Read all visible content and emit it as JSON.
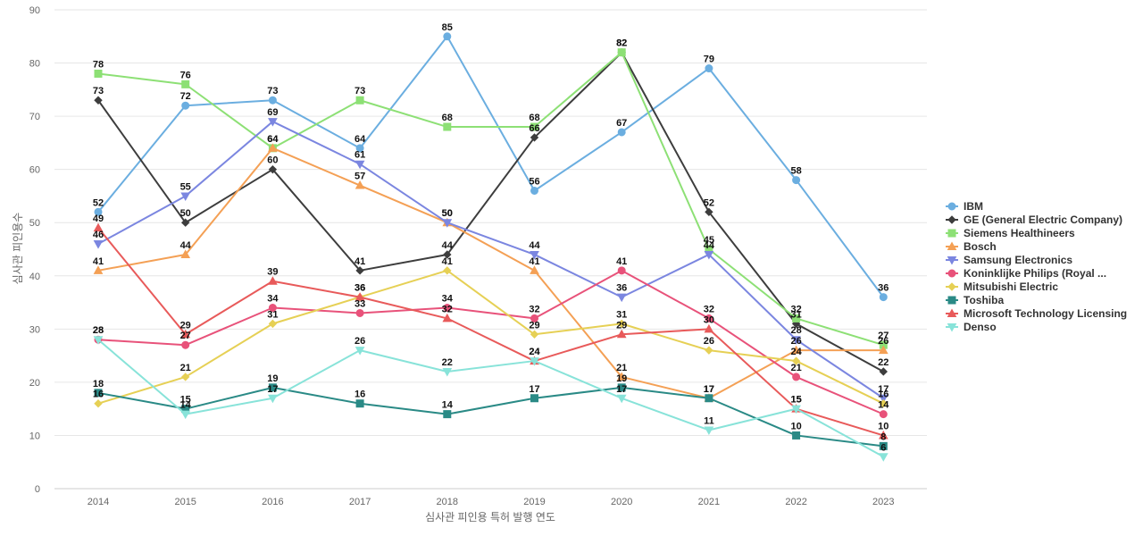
{
  "chart_data": {
    "type": "line",
    "title": "",
    "xlabel": "심사관 피인용 특허 발행 연도",
    "ylabel": "심사관 피인용수",
    "categories": [
      "2014",
      "2015",
      "2016",
      "2017",
      "2018",
      "2019",
      "2020",
      "2021",
      "2022",
      "2023"
    ],
    "ylim": [
      0,
      90
    ],
    "yticks": [
      0,
      10,
      20,
      30,
      40,
      50,
      60,
      70,
      80,
      90
    ],
    "grid": true,
    "legend_position": "right",
    "series": [
      {
        "name": "IBM",
        "color": "#6baee0",
        "marker": "circle",
        "values": [
          52,
          72,
          73,
          64,
          85,
          56,
          67,
          79,
          58,
          36
        ]
      },
      {
        "name": "GE (General Electric Company)",
        "color": "#3d3d3d",
        "marker": "diamond",
        "values": [
          73,
          50,
          60,
          41,
          44,
          66,
          82,
          52,
          31,
          22
        ]
      },
      {
        "name": "Siemens Healthineers",
        "color": "#8de075",
        "marker": "square",
        "values": [
          78,
          76,
          64,
          73,
          68,
          68,
          82,
          45,
          32,
          27
        ]
      },
      {
        "name": "Bosch",
        "color": "#f4a055",
        "marker": "triangle-up",
        "values": [
          41,
          44,
          64,
          57,
          50,
          41,
          21,
          17,
          26,
          26
        ]
      },
      {
        "name": "Samsung Electronics",
        "color": "#7b86e0",
        "marker": "triangle-down",
        "values": [
          46,
          55,
          69,
          61,
          50,
          44,
          36,
          44,
          28,
          17
        ]
      },
      {
        "name": "Koninklijke Philips (Royal ...",
        "color": "#e8527a",
        "marker": "circle",
        "values": [
          28,
          27,
          34,
          33,
          34,
          32,
          41,
          32,
          21,
          14
        ]
      },
      {
        "name": "Mitsubishi Electric",
        "color": "#e6d055",
        "marker": "diamond",
        "values": [
          16,
          21,
          31,
          36,
          41,
          29,
          31,
          26,
          24,
          16
        ]
      },
      {
        "name": "Toshiba",
        "color": "#2a8a86",
        "marker": "square",
        "values": [
          18,
          15,
          19,
          16,
          14,
          17,
          19,
          17,
          10,
          8
        ]
      },
      {
        "name": "Microsoft Technology Licensing",
        "color": "#e85a5a",
        "marker": "triangle-up",
        "values": [
          49,
          29,
          39,
          36,
          32,
          24,
          29,
          30,
          15,
          10
        ]
      },
      {
        "name": "Denso",
        "color": "#88e3d9",
        "marker": "triangle-down",
        "values": [
          28,
          14,
          17,
          26,
          22,
          24,
          17,
          11,
          15,
          6
        ]
      }
    ]
  }
}
